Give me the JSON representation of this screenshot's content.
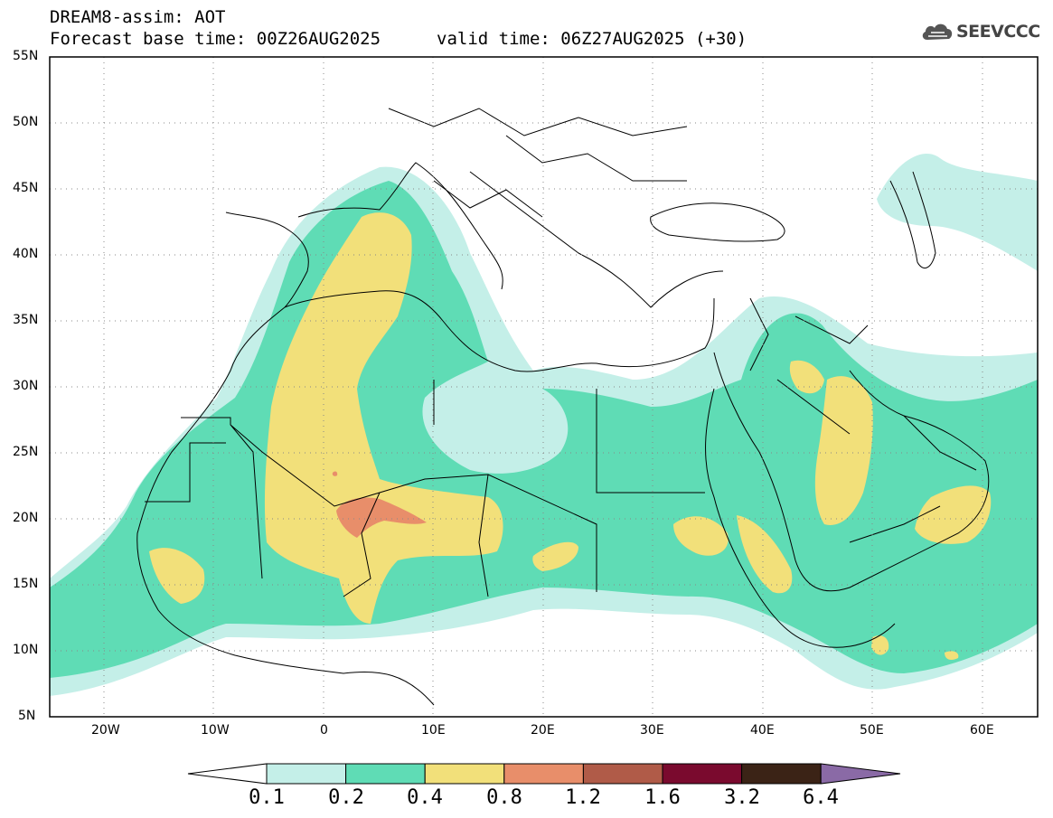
{
  "title": {
    "line1": "DREAM8-assim: AOT",
    "line2": "Forecast base time: 00Z26AUG2025",
    "valid": "valid time: 06Z27AUG2025 (+30)"
  },
  "logo": {
    "text": "SEEVCCC",
    "icon": "cloud-icon"
  },
  "map": {
    "lon_range": [
      -25,
      65
    ],
    "lat_range": [
      5,
      55
    ],
    "x_ticks": [
      "20W",
      "10W",
      "0",
      "10E",
      "20E",
      "30E",
      "40E",
      "50E",
      "60E"
    ],
    "y_ticks": [
      "55N",
      "50N",
      "45N",
      "40N",
      "35N",
      "30N",
      "25N",
      "20N",
      "15N",
      "10N",
      "5N"
    ],
    "grid": "dotted"
  },
  "colorbar": {
    "levels": [
      "0.1",
      "0.2",
      "0.4",
      "0.8",
      "1.2",
      "1.6",
      "3.2",
      "6.4"
    ],
    "colors": [
      "#c4efe8",
      "#5fdcb5",
      "#f2e07a",
      "#e88e6a",
      "#b05b48",
      "#7a0a2e",
      "#3b2316",
      "#8a6aa6"
    ],
    "under_color": "#ffffff"
  }
}
